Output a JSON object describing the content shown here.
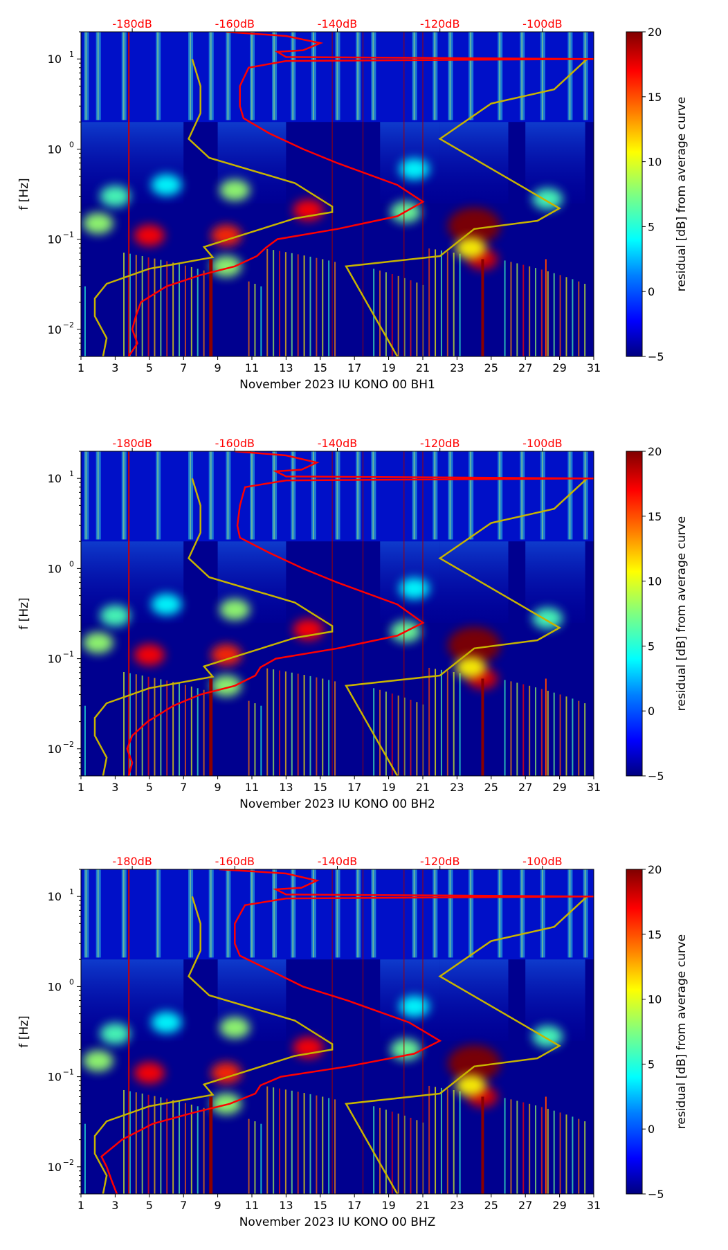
{
  "chart_data": [
    {
      "type": "heatmap",
      "title": "",
      "xlabel": "November 2023 IU KONO 00 BH1",
      "ylabel": "f [Hz]",
      "x_ticks": [
        "1",
        "3",
        "5",
        "7",
        "9",
        "11",
        "13",
        "15",
        "17",
        "19",
        "21",
        "23",
        "25",
        "27",
        "29",
        "31"
      ],
      "xlim": [
        1,
        31
      ],
      "y_scale": "log",
      "ylim": [
        0.005,
        20
      ],
      "y_ticks": [
        {
          "value": 0.01,
          "label": "10",
          "exp": "−2"
        },
        {
          "value": 0.1,
          "label": "10",
          "exp": "−1"
        },
        {
          "value": 1,
          "label": "10",
          "exp": "0"
        },
        {
          "value": 10,
          "label": "10",
          "exp": "1"
        }
      ],
      "top_axis_ticks": [
        "-180dB",
        "-160dB",
        "-140dB",
        "-120dB",
        "-100dB"
      ],
      "top_axis_values": [
        -180,
        -160,
        -140,
        -120,
        -100
      ],
      "colorbar": {
        "label": "residual [dB] from average curve",
        "min": -5,
        "max": 20,
        "ticks": [
          "−5",
          "0",
          "5",
          "10",
          "15",
          "20"
        ],
        "colormap": "jet"
      },
      "red_curve_db_f": [
        [
          -180.7,
          0.005
        ],
        [
          -179,
          0.007
        ],
        [
          -180,
          0.01
        ],
        [
          -179.3,
          0.014
        ],
        [
          -178.3,
          0.02
        ],
        [
          -173.3,
          0.03
        ],
        [
          -166.7,
          0.04
        ],
        [
          -160,
          0.05
        ],
        [
          -155.7,
          0.065
        ],
        [
          -154,
          0.08
        ],
        [
          -151.7,
          0.1
        ],
        [
          -140,
          0.13
        ],
        [
          -128.3,
          0.18
        ],
        [
          -123.3,
          0.26
        ],
        [
          -128.3,
          0.4
        ],
        [
          -140,
          0.7
        ],
        [
          -146.7,
          1
        ],
        [
          -153.3,
          1.5
        ],
        [
          -158.3,
          2.2
        ],
        [
          -159,
          3
        ],
        [
          -159,
          5
        ],
        [
          -157.3,
          8
        ],
        [
          -150,
          9.5
        ],
        [
          -90,
          10
        ],
        [
          -150,
          10.5
        ],
        [
          -151.7,
          12
        ],
        [
          -146.7,
          12.5
        ],
        [
          -143.3,
          15
        ],
        [
          -150,
          18
        ],
        [
          -161.7,
          20
        ]
      ],
      "yellow_low_db_f": [
        [
          -185.7,
          0.005
        ],
        [
          -185,
          0.008
        ],
        [
          -187.3,
          0.014
        ],
        [
          -187.3,
          0.022
        ],
        [
          -185,
          0.032
        ],
        [
          -176.7,
          0.047
        ],
        [
          -164.3,
          0.063
        ],
        [
          -166,
          0.082
        ],
        [
          -148.3,
          0.17
        ],
        [
          -141,
          0.2
        ],
        [
          -141,
          0.23
        ],
        [
          -148.3,
          0.42
        ],
        [
          -165,
          0.8
        ],
        [
          -169,
          1.3
        ],
        [
          -166.7,
          2.5
        ],
        [
          -166.7,
          5
        ],
        [
          -168.3,
          10
        ]
      ],
      "yellow_high_db_f": [
        [
          -128.3,
          0.005
        ],
        [
          -138.3,
          0.05
        ],
        [
          -120,
          0.065
        ],
        [
          -113.3,
          0.13
        ],
        [
          -101,
          0.16
        ],
        [
          -96.7,
          0.22
        ],
        [
          -120,
          1.3
        ],
        [
          -110,
          3.2
        ],
        [
          -97.7,
          4.6
        ],
        [
          -91.3,
          10
        ]
      ],
      "events_day_f_db": [
        [
          2,
          0.15,
          8
        ],
        [
          5,
          0.11,
          17
        ],
        [
          9.5,
          0.11,
          16
        ],
        [
          10,
          0.35,
          8
        ],
        [
          14.3,
          0.21,
          17
        ],
        [
          20,
          0.2,
          7
        ],
        [
          24,
          0.14,
          20
        ],
        [
          24.5,
          0.06,
          18
        ],
        [
          28.3,
          0.28,
          6
        ],
        [
          3,
          0.3,
          6
        ],
        [
          6,
          0.4,
          4
        ],
        [
          20.5,
          0.6,
          4
        ],
        [
          9.5,
          0.05,
          8
        ],
        [
          23.8,
          0.08,
          11
        ]
      ]
    },
    {
      "type": "heatmap",
      "xlabel": "November 2023 IU KONO 00 BH2",
      "ylabel": "f [Hz]",
      "x_ticks": [
        "1",
        "3",
        "5",
        "7",
        "9",
        "11",
        "13",
        "15",
        "17",
        "19",
        "21",
        "23",
        "25",
        "27",
        "29",
        "31"
      ],
      "xlim": [
        1,
        31
      ],
      "y_scale": "log",
      "ylim": [
        0.005,
        20
      ],
      "y_ticks": [
        {
          "value": 0.01,
          "label": "10",
          "exp": "−2"
        },
        {
          "value": 0.1,
          "label": "10",
          "exp": "−1"
        },
        {
          "value": 1,
          "label": "10",
          "exp": "0"
        },
        {
          "value": 10,
          "label": "10",
          "exp": "1"
        }
      ],
      "top_axis_ticks": [
        "-180dB",
        "-160dB",
        "-140dB",
        "-120dB",
        "-100dB"
      ],
      "top_axis_values": [
        -180,
        -160,
        -140,
        -120,
        -100
      ],
      "colorbar": {
        "label": "residual [dB] from average curve",
        "min": -5,
        "max": 20,
        "ticks": [
          "−5",
          "0",
          "5",
          "10",
          "15",
          "20"
        ],
        "colormap": "jet"
      },
      "red_curve_db_f": [
        [
          -180.7,
          0.005
        ],
        [
          -180,
          0.007
        ],
        [
          -181,
          0.01
        ],
        [
          -180,
          0.014
        ],
        [
          -177,
          0.02
        ],
        [
          -172,
          0.03
        ],
        [
          -166.7,
          0.04
        ],
        [
          -160,
          0.05
        ],
        [
          -156,
          0.065
        ],
        [
          -155,
          0.08
        ],
        [
          -152,
          0.1
        ],
        [
          -140,
          0.13
        ],
        [
          -128.3,
          0.18
        ],
        [
          -123.3,
          0.25
        ],
        [
          -128.3,
          0.4
        ],
        [
          -140,
          0.7
        ],
        [
          -146.7,
          1
        ],
        [
          -153.3,
          1.5
        ],
        [
          -159,
          2.2
        ],
        [
          -159.5,
          3
        ],
        [
          -159,
          5
        ],
        [
          -158,
          8
        ],
        [
          -150,
          9.5
        ],
        [
          -90,
          10
        ],
        [
          -150,
          10.5
        ],
        [
          -152,
          12
        ],
        [
          -147,
          12.5
        ],
        [
          -144,
          15
        ],
        [
          -150,
          18
        ],
        [
          -160,
          20
        ]
      ],
      "yellow_low_db_f": [
        [
          -185.7,
          0.005
        ],
        [
          -185,
          0.008
        ],
        [
          -187.3,
          0.014
        ],
        [
          -187.3,
          0.022
        ],
        [
          -185,
          0.032
        ],
        [
          -176.7,
          0.047
        ],
        [
          -164.3,
          0.063
        ],
        [
          -166,
          0.082
        ],
        [
          -148.3,
          0.17
        ],
        [
          -141,
          0.2
        ],
        [
          -141,
          0.23
        ],
        [
          -148.3,
          0.42
        ],
        [
          -165,
          0.8
        ],
        [
          -169,
          1.3
        ],
        [
          -166.7,
          2.5
        ],
        [
          -166.7,
          5
        ],
        [
          -168.3,
          10
        ]
      ],
      "yellow_high_db_f": [
        [
          -128.3,
          0.005
        ],
        [
          -138.3,
          0.05
        ],
        [
          -120,
          0.065
        ],
        [
          -113.3,
          0.13
        ],
        [
          -101,
          0.16
        ],
        [
          -96.7,
          0.22
        ],
        [
          -120,
          1.3
        ],
        [
          -110,
          3.2
        ],
        [
          -97.7,
          4.6
        ],
        [
          -91.3,
          10
        ]
      ],
      "events_day_f_db": [
        [
          2,
          0.15,
          8
        ],
        [
          5,
          0.11,
          17
        ],
        [
          9.5,
          0.11,
          16
        ],
        [
          10,
          0.35,
          8
        ],
        [
          14.3,
          0.21,
          17
        ],
        [
          20,
          0.2,
          7
        ],
        [
          24,
          0.14,
          20
        ],
        [
          24.5,
          0.06,
          18
        ],
        [
          28.3,
          0.28,
          6
        ],
        [
          3,
          0.3,
          6
        ],
        [
          6,
          0.4,
          4
        ],
        [
          20.5,
          0.6,
          4
        ],
        [
          9.5,
          0.05,
          8
        ],
        [
          23.8,
          0.08,
          11
        ]
      ]
    },
    {
      "type": "heatmap",
      "xlabel": "November 2023 IU KONO 00 BHZ",
      "ylabel": "f [Hz]",
      "x_ticks": [
        "1",
        "3",
        "5",
        "7",
        "9",
        "11",
        "13",
        "15",
        "17",
        "19",
        "21",
        "23",
        "25",
        "27",
        "29",
        "31"
      ],
      "xlim": [
        1,
        31
      ],
      "y_scale": "log",
      "ylim": [
        0.005,
        20
      ],
      "y_ticks": [
        {
          "value": 0.01,
          "label": "10",
          "exp": "−2"
        },
        {
          "value": 0.1,
          "label": "10",
          "exp": "−1"
        },
        {
          "value": 1,
          "label": "10",
          "exp": "0"
        },
        {
          "value": 10,
          "label": "10",
          "exp": "1"
        }
      ],
      "top_axis_ticks": [
        "-180dB",
        "-160dB",
        "-140dB",
        "-120dB",
        "-100dB"
      ],
      "top_axis_values": [
        -180,
        -160,
        -140,
        -120,
        -100
      ],
      "colorbar": {
        "label": "residual [dB] from average curve",
        "min": -5,
        "max": 20,
        "ticks": [
          "−5",
          "0",
          "5",
          "10",
          "15",
          "20"
        ],
        "colormap": "jet"
      },
      "red_curve_db_f": [
        [
          -183,
          0.005
        ],
        [
          -184,
          0.007
        ],
        [
          -185,
          0.01
        ],
        [
          -186,
          0.013
        ],
        [
          -182,
          0.02
        ],
        [
          -176,
          0.03
        ],
        [
          -168,
          0.04
        ],
        [
          -161,
          0.05
        ],
        [
          -156,
          0.065
        ],
        [
          -155,
          0.08
        ],
        [
          -151,
          0.1
        ],
        [
          -138,
          0.13
        ],
        [
          -125,
          0.18
        ],
        [
          -120,
          0.25
        ],
        [
          -126,
          0.4
        ],
        [
          -138,
          0.7
        ],
        [
          -146.7,
          1
        ],
        [
          -153,
          1.5
        ],
        [
          -159,
          2.2
        ],
        [
          -160,
          3
        ],
        [
          -160,
          5
        ],
        [
          -158,
          8
        ],
        [
          -150,
          9.5
        ],
        [
          -90,
          10
        ],
        [
          -150,
          10.5
        ],
        [
          -152,
          12
        ],
        [
          -147,
          12.5
        ],
        [
          -144,
          15
        ],
        [
          -150,
          18
        ],
        [
          -163,
          20
        ]
      ],
      "yellow_low_db_f": [
        [
          -185.7,
          0.005
        ],
        [
          -185,
          0.008
        ],
        [
          -187.3,
          0.014
        ],
        [
          -187.3,
          0.022
        ],
        [
          -185,
          0.032
        ],
        [
          -176.7,
          0.047
        ],
        [
          -164.3,
          0.063
        ],
        [
          -166,
          0.082
        ],
        [
          -148.3,
          0.17
        ],
        [
          -141,
          0.2
        ],
        [
          -141,
          0.23
        ],
        [
          -148.3,
          0.42
        ],
        [
          -165,
          0.8
        ],
        [
          -169,
          1.3
        ],
        [
          -166.7,
          2.5
        ],
        [
          -166.7,
          5
        ],
        [
          -168.3,
          10
        ]
      ],
      "yellow_high_db_f": [
        [
          -128.3,
          0.005
        ],
        [
          -138.3,
          0.05
        ],
        [
          -120,
          0.065
        ],
        [
          -113.3,
          0.13
        ],
        [
          -101,
          0.16
        ],
        [
          -96.7,
          0.22
        ],
        [
          -120,
          1.3
        ],
        [
          -110,
          3.2
        ],
        [
          -97.7,
          4.6
        ],
        [
          -91.3,
          10
        ]
      ],
      "events_day_f_db": [
        [
          2,
          0.15,
          8
        ],
        [
          5,
          0.11,
          17
        ],
        [
          9.5,
          0.11,
          16
        ],
        [
          10,
          0.35,
          8
        ],
        [
          14.3,
          0.21,
          17
        ],
        [
          20,
          0.2,
          7
        ],
        [
          24,
          0.14,
          20
        ],
        [
          24.5,
          0.06,
          18
        ],
        [
          28.3,
          0.28,
          6
        ],
        [
          3,
          0.3,
          6
        ],
        [
          6,
          0.4,
          4
        ],
        [
          20.5,
          0.6,
          4
        ],
        [
          9.5,
          0.05,
          8
        ],
        [
          23.8,
          0.08,
          11
        ]
      ]
    }
  ],
  "colors": {
    "red_curve": "#ff0000",
    "yellow_curve": "#c8b400",
    "top_axis_text": "#ff0000",
    "background": "#00007f"
  }
}
